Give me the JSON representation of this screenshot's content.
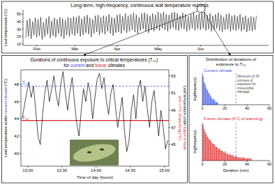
{
  "chart_data": [
    {
      "type": "line",
      "title": "Long-term, high-frequency, continuous leaf temperature records",
      "ylabel": "Leaf temperature (°C)",
      "x": [
        -8,
        -7,
        -6,
        -5,
        -4,
        -3,
        -2,
        -1,
        0,
        1,
        2,
        3,
        4,
        5,
        6,
        7,
        8,
        9,
        10,
        11,
        12,
        13,
        14,
        15,
        16,
        17,
        18,
        19,
        20,
        21,
        22,
        23,
        24,
        25,
        26,
        27,
        28,
        29,
        30,
        31,
        32,
        33,
        34,
        35,
        36,
        37,
        38,
        39,
        40,
        41,
        42,
        43,
        44,
        45,
        46,
        47,
        48,
        49,
        50,
        51,
        52,
        53,
        54,
        55,
        56,
        57,
        58,
        59,
        60,
        61,
        62,
        63,
        64,
        65,
        66,
        67,
        68,
        69,
        70,
        71,
        72,
        73,
        74,
        75,
        76,
        77,
        78,
        79,
        80,
        81,
        82,
        83,
        84,
        85,
        86,
        87,
        88,
        89,
        90,
        91,
        92,
        93,
        94,
        95,
        96,
        97,
        98,
        99,
        100,
        101,
        102,
        103,
        104,
        105,
        106,
        107,
        108,
        109,
        110,
        111,
        112,
        113,
        114,
        115,
        116,
        117,
        118,
        119,
        120,
        121,
        122,
        123,
        124,
        125,
        126,
        127,
        128,
        129,
        130,
        131,
        132,
        133,
        134,
        135,
        136,
        137,
        138,
        139,
        140,
        141,
        142,
        143,
        144,
        145,
        146,
        147,
        148,
        149,
        150,
        151,
        152,
        153,
        154,
        155,
        156,
        157,
        158,
        159,
        160,
        161
      ],
      "xlim": [
        -10,
        170
      ],
      "xticks": [
        {
          "value": 0,
          "label": "Feb"
        },
        {
          "value": 28,
          "label": "Mar"
        },
        {
          "value": 59,
          "label": "Apr"
        },
        {
          "value": 89,
          "label": "May"
        },
        {
          "value": 120,
          "label": "Jun"
        }
      ],
      "ylim": [
        8,
        56
      ],
      "yticks": [
        10,
        20,
        30,
        40,
        50
      ],
      "series": [
        {
          "color": "#000000",
          "values": [
            18,
            42,
            20,
            44,
            17,
            40,
            22,
            45,
            19,
            43,
            21,
            46,
            16,
            39,
            20,
            44,
            23,
            47,
            18,
            41,
            21,
            45,
            19,
            43,
            24,
            46,
            20,
            44,
            17,
            42,
            22,
            46,
            20,
            45,
            23,
            47,
            21,
            46,
            24,
            48,
            20,
            44,
            22,
            47,
            25,
            49,
            23,
            45,
            19,
            43,
            24,
            48,
            26,
            49,
            22,
            46,
            25,
            48,
            23,
            47,
            27,
            50,
            24,
            46,
            21,
            45,
            25,
            49,
            26,
            50,
            24,
            47,
            28,
            51,
            25,
            48,
            27,
            50,
            29,
            52,
            26,
            49,
            24,
            46,
            28,
            51,
            30,
            52,
            27,
            50,
            25,
            48,
            29,
            51,
            27,
            49,
            30,
            53,
            28,
            51,
            31,
            53,
            29,
            50,
            27,
            49,
            30,
            52,
            32,
            53,
            29,
            51,
            28,
            48,
            31,
            52,
            30,
            50,
            27,
            47,
            29,
            50,
            31,
            52,
            28,
            49,
            30,
            51,
            29,
            52,
            31,
            53,
            28,
            49,
            30,
            51,
            27,
            48,
            29,
            50,
            31,
            52,
            28,
            49,
            26,
            46,
            29,
            50,
            30,
            51,
            27,
            48,
            29,
            49,
            28,
            47,
            30,
            50,
            27,
            46,
            29,
            48,
            26,
            45,
            28,
            47,
            27,
            46,
            29,
            48
          ]
        }
      ]
    },
    {
      "type": "line",
      "title": "Durations of continuous exposure to critical temperatures (T₅₀)",
      "subtitle": [
        {
          "text": "for "
        },
        {
          "text": "current",
          "color": "#2f4fe0"
        },
        {
          "text": " and "
        },
        {
          "text": "future",
          "color": "#e02020"
        },
        {
          "text": " climates"
        }
      ],
      "xlabel": "Time of day (hours)",
      "ylabel": [
        {
          "text": "Leaf temperature under "
        },
        {
          "text": "current climate",
          "color": "#2f4fe0"
        },
        {
          "text": " (°C)"
        }
      ],
      "y2label": [
        [
          {
            "text": "Leaf temperature under "
          },
          {
            "text": "future climate",
            "color": "#e02020"
          }
        ],
        [
          {
            "text": "with +4°C of warming (°C)",
            "color": "#e02020"
          }
        ]
      ],
      "x": [
        775,
        777,
        779,
        781,
        783,
        785,
        787,
        789,
        791,
        793,
        795,
        797,
        799,
        801,
        803,
        805,
        807,
        809,
        811,
        813,
        815,
        817,
        819,
        821,
        823,
        825,
        827,
        829,
        831,
        833,
        835,
        837,
        839,
        841,
        843,
        845,
        847,
        849,
        851,
        853,
        855,
        857,
        859,
        861,
        863,
        865,
        867,
        869,
        871,
        873,
        875,
        877,
        879,
        881,
        883,
        885,
        887,
        889,
        891,
        893,
        895,
        897,
        899,
        901,
        903
      ],
      "xlim": [
        774,
        904
      ],
      "xticks": [
        {
          "value": 780,
          "label": "13:00"
        },
        {
          "value": 810,
          "label": "13:30"
        },
        {
          "value": 840,
          "label": "14:00"
        },
        {
          "value": 870,
          "label": "14:30"
        },
        {
          "value": 900,
          "label": "15:00"
        }
      ],
      "ylim": [
        38.5,
        49.7
      ],
      "yticks": [
        40,
        42,
        44,
        46,
        48
      ],
      "y2lim": [
        42.5,
        53.7
      ],
      "y2ticks": [
        45,
        47,
        49,
        51,
        53
      ],
      "series": [
        {
          "color": "#000000",
          "values": [
            44.0,
            45.5,
            47.0,
            48.3,
            46.5,
            47.8,
            45.0,
            42.0,
            41.0,
            44.5,
            47.0,
            48.5,
            46.0,
            47.5,
            49.0,
            46.8,
            45.5,
            48.0,
            49.5,
            47.0,
            45.0,
            47.2,
            48.8,
            46.0,
            43.5,
            42.0,
            45.0,
            47.5,
            46.0,
            48.2,
            47.0,
            44.0,
            46.5,
            48.6,
            49.3,
            47.5,
            48.8,
            46.2,
            44.5,
            47.0,
            48.0,
            45.5,
            43.0,
            44.8,
            46.5,
            42.5,
            40.2,
            41.5,
            45.0,
            46.8,
            44.0,
            47.5,
            48.5,
            46.0,
            47.8,
            45.2,
            43.0,
            46.0,
            47.3,
            44.5,
            42.0,
            45.0,
            43.0,
            40.5,
            41.5
          ]
        }
      ],
      "reference_lines": [
        {
          "label": "T₅₀",
          "value": 47.8,
          "color": "#2f4fe0",
          "line_style": "dashed"
        },
        {
          "label": "T₅₀",
          "value": 47.8,
          "axis": "y2",
          "color": "#e02020",
          "line_style": "solid"
        }
      ]
    },
    {
      "type": "histogram",
      "title": [
        "Distribution of durations of",
        "exposure to T₅₀"
      ],
      "subtitle": "Current climate",
      "color": "#2f4fe0",
      "ylabel": "log(frequency)",
      "bins": [
        0,
        1,
        2,
        3,
        4,
        5,
        6,
        7,
        8,
        9,
        10,
        11,
        12,
        13,
        14
      ],
      "values": [
        3.1,
        2.5,
        2.2,
        1.8,
        1.6,
        1.3,
        1.1,
        0.9,
        0.7,
        0.5,
        0.6,
        0.3,
        0.3,
        0.2
      ],
      "xlim": [
        0,
        60
      ],
      "xticks": [
        0,
        20,
        40,
        60
      ],
      "ylim": [
        0,
        3.5
      ],
      "tick_labels": "x",
      "annotations": [
        {
          "x": 30,
          "line_style": "dashed",
          "text": [
            "Minimum of 30",
            "minutes of",
            "exposure for",
            "irreversible",
            "damage"
          ]
        }
      ]
    },
    {
      "type": "histogram",
      "subtitle": "Future climate (4°C of warming)",
      "color": "#e02020",
      "xlabel": "Duration (min)",
      "ylabel": "log(frequency)",
      "bins": [
        0,
        1,
        2,
        3,
        4,
        5,
        6,
        7,
        8,
        9,
        10,
        11,
        12,
        13,
        14,
        15,
        16,
        17,
        18,
        19,
        20,
        21,
        22,
        23,
        24,
        25,
        26,
        27,
        28,
        29,
        30,
        31,
        32,
        33,
        34,
        35,
        36,
        37,
        38,
        39,
        40,
        41,
        42,
        43,
        44
      ],
      "values": [
        3.3,
        2.9,
        2.6,
        2.4,
        2.2,
        2.0,
        1.9,
        1.8,
        1.6,
        1.5,
        1.5,
        1.3,
        1.2,
        1.2,
        1.0,
        1.1,
        0.9,
        0.9,
        0.8,
        0.7,
        0.8,
        0.6,
        0.6,
        0.5,
        0.6,
        0.4,
        0.5,
        0.4,
        0.3,
        0.4,
        0.3,
        0.3,
        0.2,
        0.3,
        0.2,
        0.2,
        0.3,
        0.2,
        0.2,
        0.1,
        0.2,
        0.2,
        0.1,
        0.2
      ],
      "xlim": [
        0,
        60
      ],
      "xticks": [
        0,
        20,
        40,
        60
      ],
      "ylim": [
        0,
        3.5
      ],
      "tick_labels": "x",
      "annotations": [
        {
          "x": 30,
          "line_style": "dashed"
        }
      ]
    }
  ]
}
